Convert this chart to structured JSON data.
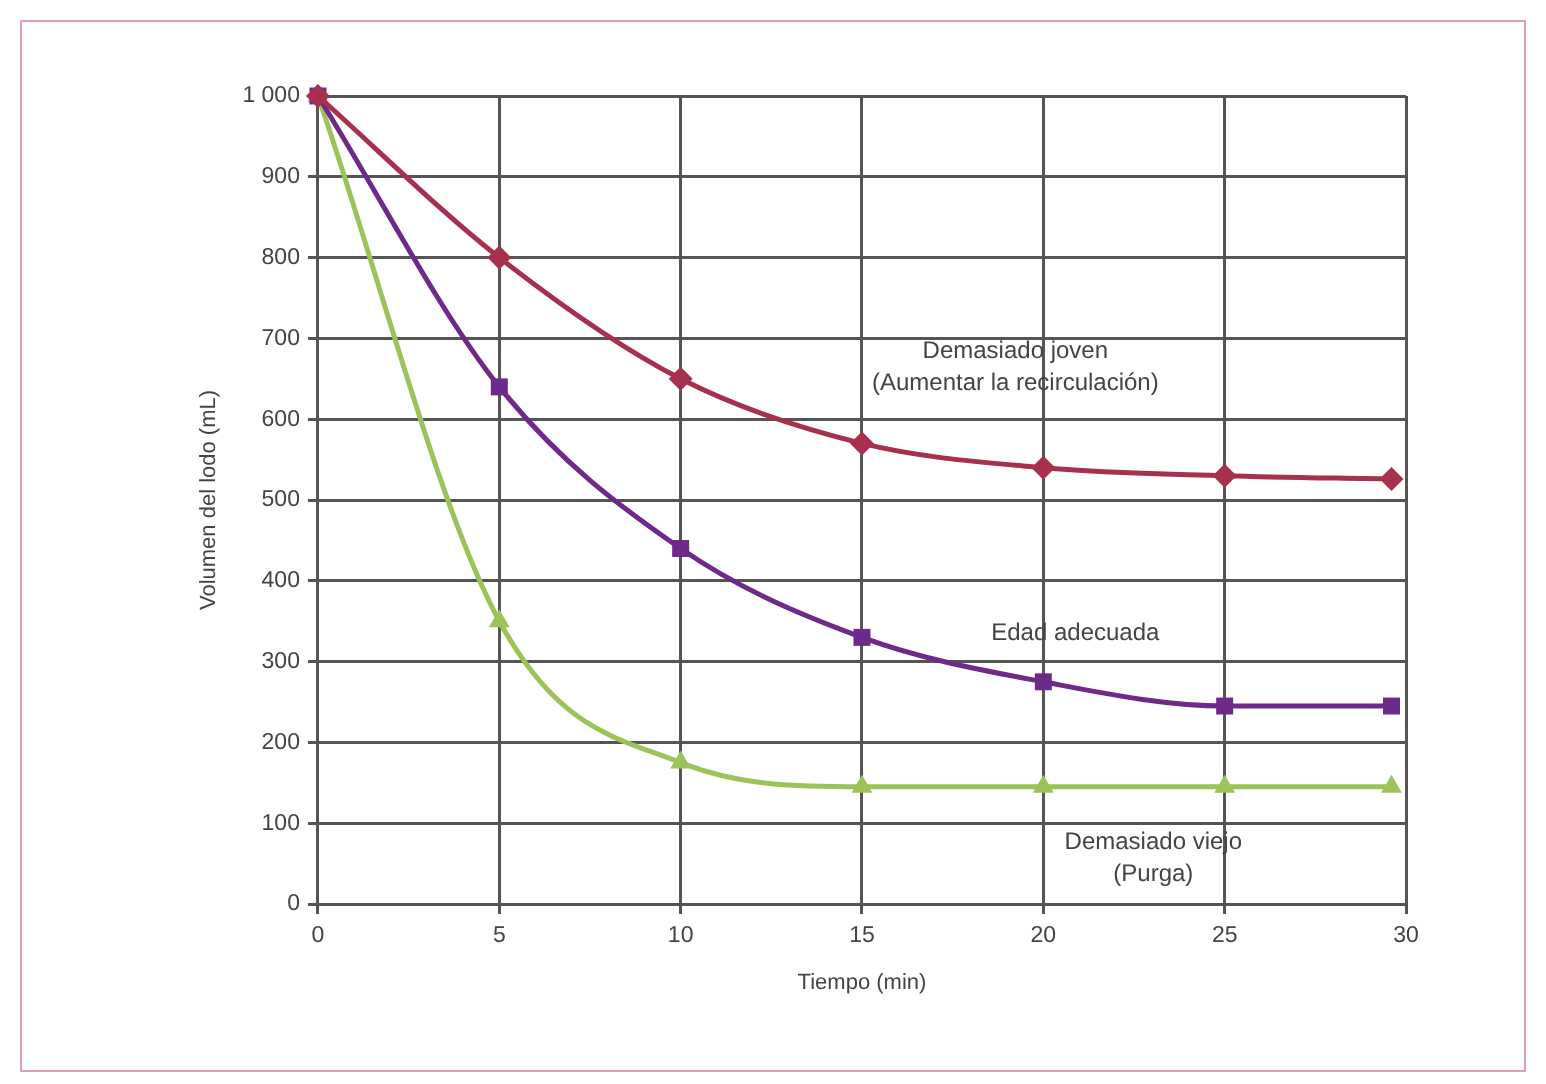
{
  "chart_data": {
    "type": "line",
    "xlabel": "Tiempo (min)",
    "ylabel": "Volumen del lodo (mL)",
    "x": [
      0,
      5,
      10,
      15,
      20,
      25,
      29.6
    ],
    "series": [
      {
        "name": "Demasiado joven\n(Aumentar la recirculación)",
        "color": "#a8304f",
        "marker": "diamond",
        "values": [
          1000,
          800,
          650,
          570,
          540,
          530,
          526
        ]
      },
      {
        "name": "Edad adecuada",
        "color": "#6e2a8a",
        "marker": "square",
        "values": [
          1000,
          640,
          440,
          330,
          275,
          245,
          245
        ]
      },
      {
        "name": "Demasiado viejo\n(Purga)",
        "color": "#9cc35a",
        "marker": "triangle",
        "values": [
          1000,
          350,
          175,
          145,
          145,
          145,
          145
        ]
      }
    ],
    "xlim": [
      0,
      30
    ],
    "xticks": [
      0,
      5,
      10,
      15,
      20,
      25,
      30
    ],
    "ylim": [
      0,
      1000
    ],
    "yticks": [
      0,
      100,
      200,
      300,
      400,
      500,
      600,
      700,
      800,
      900,
      {
        "value": 1000,
        "label": "1 000"
      }
    ],
    "grid": true,
    "legend": false,
    "line_style": "solid"
  }
}
